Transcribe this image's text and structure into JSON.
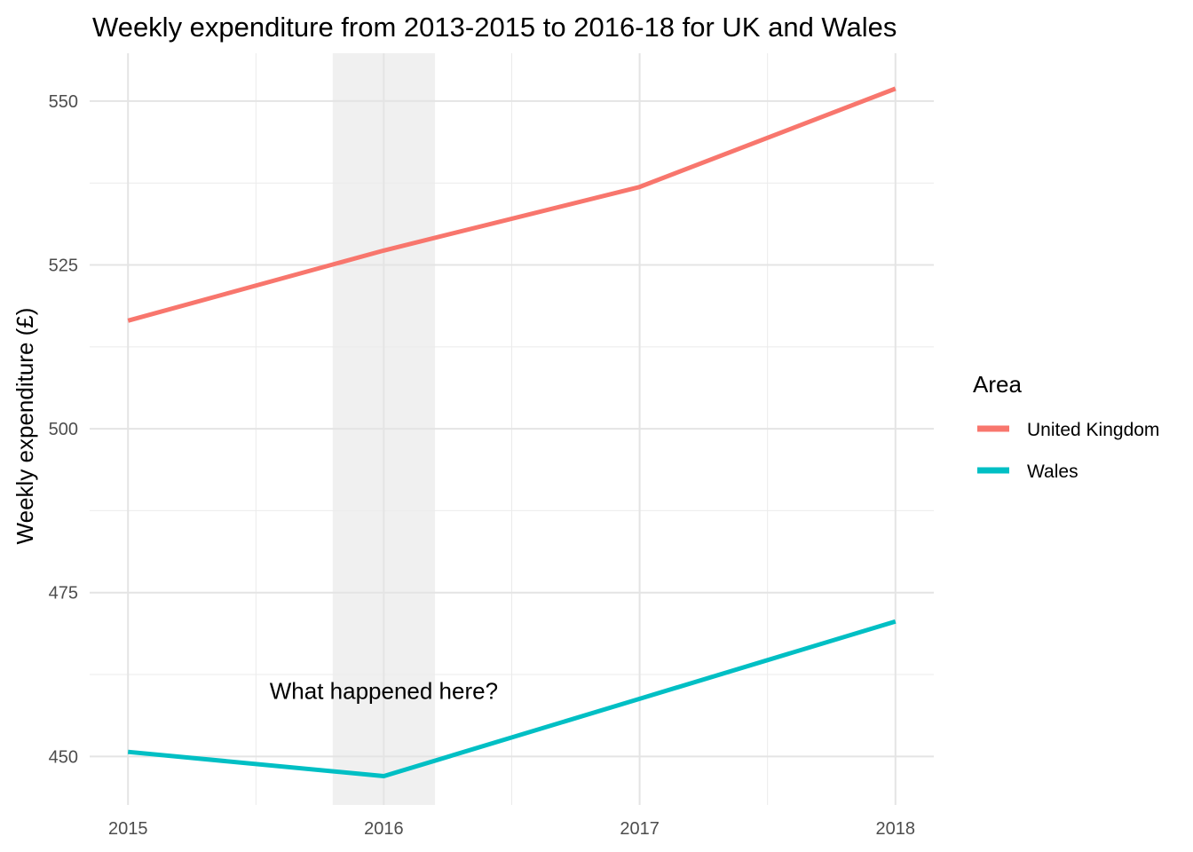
{
  "chart_data": {
    "type": "line",
    "title": "Weekly expenditure from 2013-2015 to 2016-18 for UK and Wales",
    "xlabel": "",
    "ylabel": "Weekly expenditure (£)",
    "x": [
      2015,
      2016,
      2017,
      2018
    ],
    "x_ticks": [
      2015,
      2016,
      2017,
      2018
    ],
    "x_tick_labels": [
      "2015",
      "2016",
      "2017",
      "2018"
    ],
    "xlim": [
      2014.85,
      2018.15
    ],
    "y_ticks": [
      450,
      475,
      500,
      525,
      550
    ],
    "y_tick_labels": [
      "450",
      "475",
      "500",
      "525",
      "550"
    ],
    "ylim": [
      442.6,
      557.3
    ],
    "grid": true,
    "legend": {
      "title": "Area",
      "placement": "right"
    },
    "series": [
      {
        "name": "United Kingdom",
        "color": "#F8766D",
        "values": [
          516.5,
          527.2,
          536.9,
          551.9
        ]
      },
      {
        "name": "Wales",
        "color": "#00BFC4",
        "values": [
          450.7,
          447.0,
          458.8,
          470.6
        ]
      }
    ],
    "highlight_band": {
      "x_start": 2015.8,
      "x_end": 2016.2,
      "color": "#f0f0f0"
    },
    "annotations": [
      {
        "text": "What happened here?",
        "x": 2016.0,
        "y": 460.0
      }
    ]
  }
}
